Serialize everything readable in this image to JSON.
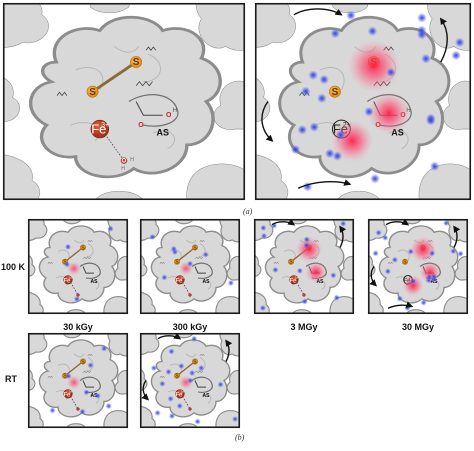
{
  "figure": {
    "part_labels": {
      "a": "(a)",
      "b": "(b)"
    }
  },
  "atoms": {
    "sulfur": "S",
    "iron": "Fe",
    "iron_ox3": "3+",
    "iron_ox2": "2+",
    "oxygen": "O",
    "hydrogen": "H",
    "active_site": "AS"
  },
  "rows": {
    "row1": "100 K",
    "row2": "RT"
  },
  "doses": [
    "30 kGy",
    "300 kGy",
    "3 MGy",
    "30 MGy"
  ],
  "colors": {
    "protein_fill": "#d8d8d8",
    "protein_edge": "#8c8c8c",
    "sulfur": "#f4a623",
    "iron_fe3": "#c0401f",
    "radical_blue": "#3a4fd8",
    "radical_red": "#ff2d55",
    "frame": "#1a1a1a"
  }
}
